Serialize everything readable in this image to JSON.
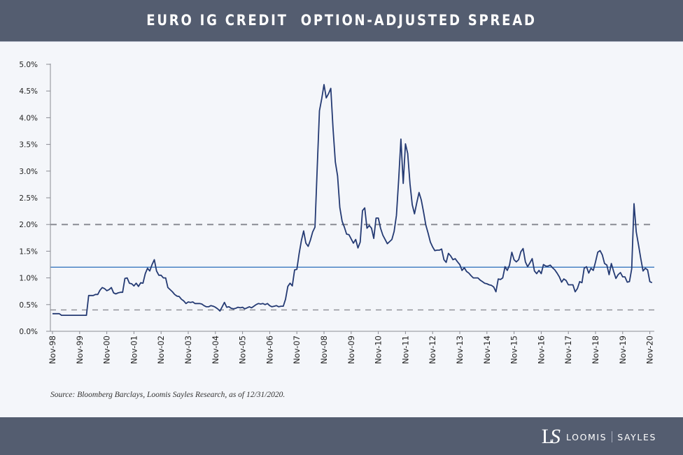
{
  "header": {
    "title": "EURO IG CREDIT  OPTION-ADJUSTED SPREAD"
  },
  "source": "Source: Bloomberg Barclays, Loomis Sayles Research, as of 12/31/2020.",
  "logo": {
    "left": "LOOMIS",
    "right": "SAYLES",
    "mark": "LS"
  },
  "colors": {
    "header_bg": "#545d70",
    "series": "#243a73",
    "average_line": "#3a78c0",
    "band_lines": "#8a8c93",
    "plot_bg": "#f4f6fa"
  },
  "chart_data": {
    "type": "line",
    "title": "EURO IG CREDIT  OPTION-ADJUSTED SPREAD",
    "xlabel": "",
    "ylabel": "",
    "ylim": [
      0,
      5.0
    ],
    "y_ticks": [
      "0.0%",
      "0.5%",
      "1.0%",
      "1.5%",
      "2.0%",
      "2.5%",
      "3.0%",
      "3.5%",
      "4.0%",
      "4.5%",
      "5.0%"
    ],
    "y_tick_values": [
      0,
      0.5,
      1.0,
      1.5,
      2.0,
      2.5,
      3.0,
      3.5,
      4.0,
      4.5,
      5.0
    ],
    "x_ticks": [
      "Nov-98",
      "Nov-99",
      "Nov-00",
      "Nov-01",
      "Nov-02",
      "Nov-03",
      "Nov-04",
      "Nov-05",
      "Nov-06",
      "Nov-07",
      "Nov-08",
      "Nov-09",
      "Nov-10",
      "Nov-11",
      "Nov-12",
      "Nov-13",
      "Nov-14",
      "Nov-15",
      "Nov-16",
      "Nov-17",
      "Nov-18",
      "Nov-19",
      "Nov-20"
    ],
    "x_range": [
      "1998-11",
      "2020-12"
    ],
    "grid": false,
    "reference_lines": [
      {
        "value": 2.0,
        "style": "dashed",
        "color": "#8a8c93"
      },
      {
        "value": 1.2,
        "style": "solid",
        "color": "#3a78c0"
      },
      {
        "value": 0.4,
        "style": "dashed",
        "color": "#8a8c93"
      }
    ],
    "series_monthly_jan_to_dec": {
      "1998": [
        null,
        null,
        null,
        null,
        null,
        null,
        null,
        null,
        null,
        null,
        0.33,
        0.33
      ],
      "1999": [
        0.33,
        0.33,
        0.3,
        0.3,
        0.3,
        0.3,
        0.3,
        0.3,
        0.3,
        0.3,
        0.3,
        0.3
      ],
      "2000": [
        0.3,
        0.3,
        0.67,
        0.67,
        0.67,
        0.69,
        0.69,
        0.77,
        0.82,
        0.8,
        0.76,
        0.78
      ],
      "2001": [
        0.82,
        0.72,
        0.7,
        0.72,
        0.73,
        0.73,
        0.99,
        1.0,
        0.9,
        0.89,
        0.85,
        0.9
      ],
      "2002": [
        0.84,
        0.91,
        0.9,
        1.08,
        1.18,
        1.13,
        1.25,
        1.34,
        1.13,
        1.05,
        1.05,
        1.0
      ],
      "2003": [
        1.0,
        0.82,
        0.78,
        0.74,
        0.69,
        0.66,
        0.65,
        0.6,
        0.57,
        0.52,
        0.55,
        0.54
      ],
      "2004": [
        0.55,
        0.52,
        0.52,
        0.52,
        0.51,
        0.48,
        0.46,
        0.46,
        0.48,
        0.47,
        0.45,
        0.42
      ],
      "2005": [
        0.38,
        0.46,
        0.54,
        0.45,
        0.46,
        0.43,
        0.42,
        0.43,
        0.45,
        0.44,
        0.45,
        0.42
      ],
      "2006": [
        0.44,
        0.46,
        0.44,
        0.47,
        0.5,
        0.52,
        0.51,
        0.52,
        0.5,
        0.52,
        0.48,
        0.46
      ],
      "2007": [
        0.47,
        0.48,
        0.46,
        0.47,
        0.47,
        0.6,
        0.84,
        0.9,
        0.85,
        1.15,
        1.16,
        1.45
      ],
      "2008": [
        1.7,
        1.88,
        1.65,
        1.59,
        1.71,
        1.86,
        1.95,
        3.06,
        4.13,
        4.36,
        4.62,
        4.37
      ],
      "2009": [
        4.45,
        4.55,
        3.8,
        3.17,
        2.91,
        2.32,
        2.06,
        1.95,
        1.82,
        1.81,
        1.73,
        1.65
      ],
      "2010": [
        1.72,
        1.56,
        1.67,
        2.26,
        2.31,
        1.93,
        1.98,
        1.93,
        1.74,
        2.12,
        2.12,
        1.93
      ],
      "2011": [
        1.8,
        1.72,
        1.64,
        1.68,
        1.72,
        1.87,
        2.17,
        2.84,
        3.6,
        2.77,
        3.51,
        3.33
      ],
      "2012": [
        2.76,
        2.37,
        2.2,
        2.41,
        2.6,
        2.46,
        2.23,
        1.99,
        1.84,
        1.67,
        1.58,
        1.51
      ],
      "2013": [
        1.52,
        1.52,
        1.54,
        1.34,
        1.29,
        1.46,
        1.41,
        1.34,
        1.36,
        1.3,
        1.25,
        1.14
      ],
      "2014": [
        1.19,
        1.12,
        1.09,
        1.04,
        1.0,
        1.0,
        1.0,
        0.96,
        0.93,
        0.9,
        0.89,
        0.87
      ],
      "2015": [
        0.86,
        0.83,
        0.74,
        0.98,
        0.97,
        1.0,
        1.21,
        1.14,
        1.24,
        1.48,
        1.34,
        1.3
      ],
      "2016": [
        1.34,
        1.49,
        1.55,
        1.3,
        1.21,
        1.28,
        1.36,
        1.13,
        1.08,
        1.14,
        1.08,
        1.25
      ],
      "2017": [
        1.22,
        1.22,
        1.24,
        1.19,
        1.15,
        1.09,
        1.02,
        0.92,
        0.98,
        0.95,
        0.87,
        0.87
      ],
      "2018": [
        0.87,
        0.74,
        0.8,
        0.93,
        0.91,
        1.18,
        1.21,
        1.09,
        1.18,
        1.14,
        1.3,
        1.48
      ],
      "2019": [
        1.51,
        1.43,
        1.27,
        1.24,
        1.06,
        1.27,
        1.12,
        0.99,
        1.06,
        1.1,
        1.02,
        1.02
      ],
      "2020": [
        0.92,
        0.93,
        1.17,
        2.39,
        1.86,
        1.62,
        1.36,
        1.13,
        1.18,
        1.15,
        0.93,
        0.91
      ]
    }
  }
}
